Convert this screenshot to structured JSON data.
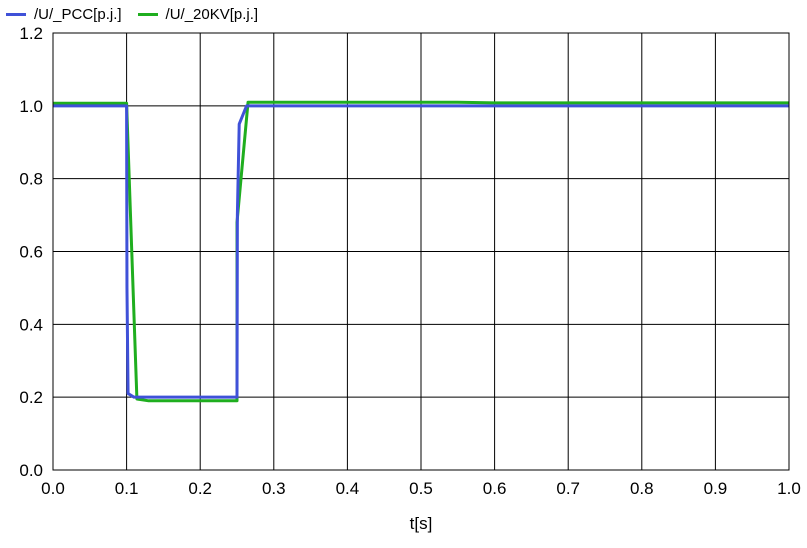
{
  "chart_data": {
    "type": "line",
    "title": "",
    "xlabel": "t[s]",
    "ylabel": "",
    "xlim": [
      0.0,
      1.0
    ],
    "ylim": [
      0.0,
      1.2
    ],
    "xticks": [
      "0.0",
      "0.1",
      "0.2",
      "0.3",
      "0.4",
      "0.5",
      "0.6",
      "0.7",
      "0.8",
      "0.9",
      "1.0"
    ],
    "yticks": [
      "0.0",
      "0.2",
      "0.4",
      "0.6",
      "0.8",
      "1.0",
      "1.2"
    ],
    "grid": true,
    "legend_position": "top-left",
    "series": [
      {
        "name": "/U/_PCC[p.j.]",
        "color": "#3f51d8",
        "x": [
          0.0,
          0.1,
          0.1005,
          0.102,
          0.11,
          0.2,
          0.25,
          0.2505,
          0.253,
          0.263,
          0.3,
          0.5,
          0.7,
          1.0
        ],
        "y": [
          1.0,
          1.0,
          0.5,
          0.21,
          0.2,
          0.2,
          0.2,
          0.7,
          0.95,
          1.0,
          1.0,
          1.0,
          1.0,
          1.0
        ]
      },
      {
        "name": "/U/_20KV[p.j.]",
        "color": "#1fae1f",
        "x": [
          0.0,
          0.1,
          0.114,
          0.13,
          0.2,
          0.25,
          0.25,
          0.265,
          0.3,
          0.45,
          0.55,
          0.6,
          1.0
        ],
        "y": [
          1.007,
          1.007,
          0.195,
          0.19,
          0.19,
          0.19,
          0.68,
          1.01,
          1.01,
          1.01,
          1.01,
          1.008,
          1.008
        ]
      }
    ]
  }
}
